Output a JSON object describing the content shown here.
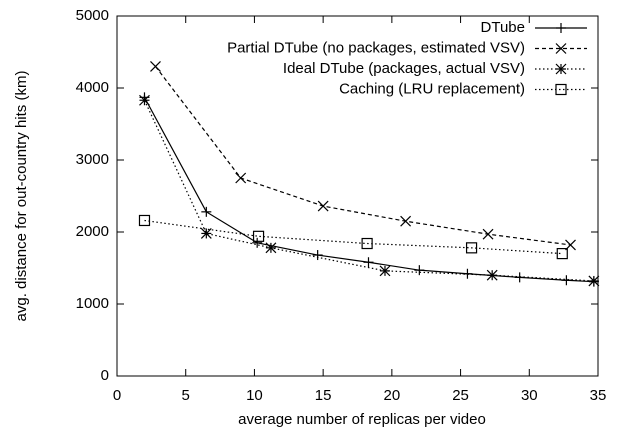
{
  "chart_data": {
    "type": "line",
    "xlabel": "average number of replicas per video",
    "ylabel": "avg. distance for out-country hits (km)",
    "xlim": [
      0,
      35
    ],
    "xticks": [
      0,
      5,
      10,
      15,
      20,
      25,
      30,
      35
    ],
    "ylim": [
      0,
      5000
    ],
    "yticks": [
      0,
      1000,
      2000,
      3000,
      4000,
      5000
    ],
    "legend": "top-right",
    "series": [
      {
        "name": "DTube",
        "color": "#000000",
        "style": "solid",
        "marker": "plus",
        "x": [
          2,
          6.5,
          10.2,
          14.6,
          18.3,
          22,
          25.5,
          29.3,
          32.7,
          34.7
        ],
        "values": [
          3870,
          2280,
          1850,
          1680,
          1580,
          1470,
          1420,
          1370,
          1330,
          1310
        ]
      },
      {
        "name": "Partial DTube (no packages, estimated VSV)",
        "color": "#000000",
        "style": "dashed",
        "marker": "x",
        "x": [
          2.8,
          9,
          15,
          21,
          27,
          33
        ],
        "values": [
          4300,
          2750,
          2360,
          2150,
          1970,
          1820
        ]
      },
      {
        "name": "Ideal DTube (packages, actual VSV)",
        "color": "#000000",
        "style": "dotted",
        "marker": "star",
        "x": [
          2,
          6.5,
          11.2,
          19.5,
          27.3,
          34.7
        ],
        "values": [
          3830,
          1980,
          1780,
          1460,
          1400,
          1320
        ]
      },
      {
        "name": "Caching (LRU replacement)",
        "color": "#000000",
        "style": "dotted",
        "marker": "square",
        "x": [
          2,
          10.3,
          18.2,
          25.8,
          32.4
        ],
        "values": [
          2160,
          1940,
          1840,
          1780,
          1700
        ]
      }
    ]
  }
}
